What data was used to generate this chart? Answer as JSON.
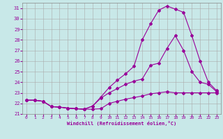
{
  "xlabel": "Windchill (Refroidissement éolien,°C)",
  "bg_color": "#c8e8e8",
  "line_color": "#990099",
  "xlim": [
    -0.5,
    23.5
  ],
  "ylim": [
    21,
    31.5
  ],
  "xticks": [
    0,
    1,
    2,
    3,
    4,
    5,
    6,
    7,
    8,
    9,
    10,
    11,
    12,
    13,
    14,
    15,
    16,
    17,
    18,
    19,
    20,
    21,
    22,
    23
  ],
  "yticks": [
    21,
    22,
    23,
    24,
    25,
    26,
    27,
    28,
    29,
    30,
    31
  ],
  "line1_x": [
    0,
    1,
    2,
    3,
    4,
    5,
    6,
    7,
    8,
    9,
    10,
    11,
    12,
    13,
    14,
    15,
    16,
    17,
    18,
    19,
    20,
    21,
    22,
    23
  ],
  "line1_y": [
    22.3,
    22.3,
    22.2,
    21.7,
    21.65,
    21.55,
    21.5,
    21.45,
    21.45,
    21.5,
    22.0,
    22.2,
    22.4,
    22.55,
    22.7,
    22.9,
    23.0,
    23.1,
    23.0,
    23.0,
    23.0,
    23.0,
    23.0,
    23.0
  ],
  "line2_x": [
    0,
    1,
    2,
    3,
    4,
    5,
    6,
    7,
    8,
    9,
    10,
    11,
    12,
    13,
    14,
    15,
    16,
    17,
    18,
    19,
    20,
    21,
    22,
    23
  ],
  "line2_y": [
    22.3,
    22.3,
    22.2,
    21.7,
    21.65,
    21.55,
    21.5,
    21.45,
    21.75,
    22.5,
    23.0,
    23.4,
    23.8,
    24.1,
    24.3,
    25.6,
    25.8,
    27.2,
    28.4,
    27.0,
    25.0,
    24.0,
    23.8,
    23.1
  ],
  "line3_x": [
    0,
    1,
    2,
    3,
    4,
    5,
    6,
    7,
    8,
    9,
    10,
    11,
    12,
    13,
    14,
    15,
    16,
    17,
    18,
    19,
    20,
    21,
    22,
    23
  ],
  "line3_y": [
    22.3,
    22.3,
    22.2,
    21.7,
    21.65,
    21.55,
    21.5,
    21.45,
    21.75,
    22.6,
    23.5,
    24.2,
    24.8,
    25.5,
    28.0,
    29.5,
    30.8,
    31.2,
    30.9,
    30.6,
    28.4,
    26.0,
    24.0,
    23.2
  ]
}
